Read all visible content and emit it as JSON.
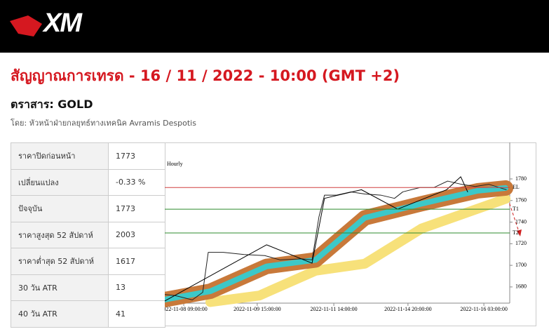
{
  "header": {
    "logo": "XM"
  },
  "title": "สัญญาณการเทรด - 16 / 11 / 2022 - 10:00 (GMT +2)",
  "instrument": "ตราสาร: GOLD",
  "byline": "โดย: หัวหน้าฝ่ายกลยุทธ์ทางเทคนิค Avramis Despotis",
  "table": {
    "rows": [
      [
        "ราคาปิดก่อนหน้า",
        "1773"
      ],
      [
        "เปลี่ยนแปลง",
        "-0.33 %"
      ],
      [
        "ปัจจุบัน",
        "1773"
      ],
      [
        "ราคาสูงสุด 52 สัปดาห์",
        "2003"
      ],
      [
        "ราคาต่ำสุด 52 สัปดาห์",
        "1617"
      ],
      [
        "30 วัน ATR",
        "13"
      ],
      [
        "40 วัน ATR",
        "41"
      ]
    ]
  },
  "chart": {
    "type": "line",
    "label": "Hourly",
    "xlim": [
      0,
      100
    ],
    "ylim": [
      1665,
      1810
    ],
    "xticks": [
      {
        "value": 5.5,
        "label": "2022-11-08 09:00:00"
      },
      {
        "value": 26.8,
        "label": "2022-11-09 15:00:00"
      },
      {
        "value": 49,
        "label": "2022-11-11 14:00:00"
      },
      {
        "value": 70.5,
        "label": "2022-11-14 20:00:00"
      },
      {
        "value": 92.5,
        "label": "2022-11-16 03:00:00"
      }
    ],
    "yticks": [
      1680,
      1700,
      1720,
      1740,
      1760,
      1780
    ],
    "levels": [
      {
        "label": "EL",
        "value": 1772,
        "color": "#d04040"
      },
      {
        "label": "T1",
        "value": 1752,
        "color": "#2e8b2e"
      },
      {
        "label": "T2",
        "value": 1730,
        "color": "#2e8b2e"
      }
    ],
    "series": [
      {
        "color": "#f7e17a",
        "width": 14,
        "x": [
          13.2,
          27.4,
          43.7,
          58,
          74.4,
          98.8
        ],
        "values": [
          1666,
          1672,
          1695,
          1701.5,
          1734,
          1761.5
        ]
      },
      {
        "color": "#c8793a",
        "width": 22,
        "x": [
          0,
          13.2,
          29.5,
          43.7,
          58,
          74.4,
          90.7,
          98.8
        ],
        "values": [
          1668.3,
          1676,
          1699,
          1705,
          1744,
          1757,
          1769,
          1771.6
        ]
      },
      {
        "color": "#3cc8c8",
        "width": 8,
        "x": [
          0,
          13.2,
          29.5,
          43.7,
          58,
          74.4,
          90.7,
          98.8
        ],
        "values": [
          1668.3,
          1676,
          1699,
          1705,
          1744,
          1757,
          1769,
          1771.6
        ]
      },
      {
        "color": "#222222",
        "width": 1,
        "x": [
          0,
          3,
          8,
          11,
          12.6,
          17,
          23,
          29,
          33.5,
          39.6,
          42.7,
          44.7,
          46.3,
          49.8,
          54,
          58,
          62.6,
          66.6,
          69,
          74,
          78,
          82,
          86,
          90,
          94,
          97,
          99
        ],
        "values": [
          1673,
          1672,
          1668,
          1675,
          1712,
          1712,
          1710,
          1709,
          1705,
          1706,
          1705,
          1745,
          1765,
          1765,
          1768,
          1766,
          1765,
          1762,
          1768,
          1772,
          1772,
          1778,
          1775,
          1773,
          1775,
          1772,
          1770
        ]
      },
      {
        "color": "#000000",
        "width": 1,
        "x": [
          0,
          29.5,
          42.7,
          46.3,
          57,
          67.5,
          81.7,
          85.8,
          87.8
        ],
        "values": [
          1667,
          1719,
          1702,
          1762,
          1770,
          1752,
          1770,
          1782,
          1768
        ]
      }
    ]
  }
}
